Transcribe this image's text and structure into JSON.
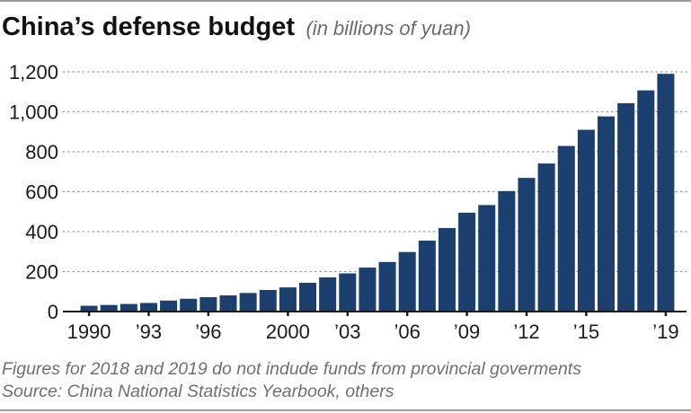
{
  "header": {
    "title": "China’s defense budget",
    "subtitle": "(in billions of yuan)"
  },
  "footer": {
    "note": "Figures for 2018 and 2019 do not indude funds from provincial goverments",
    "source": "Source: China National Statistics Yearbook, others"
  },
  "colors": {
    "bar": "#1b3f6e",
    "grid": "#9a9a9a",
    "axis": "#1a1a1a"
  },
  "chart_data": {
    "type": "bar",
    "title": "China’s defense budget",
    "subtitle": "(in billions of yuan)",
    "xlabel": "",
    "ylabel": "",
    "ylim": [
      0,
      1200
    ],
    "grid": true,
    "y_ticks": [
      0,
      200,
      400,
      600,
      800,
      1000,
      1200
    ],
    "y_tick_labels": [
      "0",
      "200",
      "400",
      "600",
      "800",
      "1,000",
      "1,200"
    ],
    "categories": [
      "1990",
      "1991",
      "1992",
      "1993",
      "1994",
      "1995",
      "1996",
      "1997",
      "1998",
      "1999",
      "2000",
      "2001",
      "2002",
      "2003",
      "2004",
      "2005",
      "2006",
      "2007",
      "2008",
      "2009",
      "2010",
      "2011",
      "2012",
      "2013",
      "2014",
      "2015",
      "2016",
      "2017",
      "2018",
      "2019"
    ],
    "values": [
      29,
      33,
      38,
      43,
      55,
      64,
      72,
      81,
      93,
      108,
      121,
      144,
      171,
      191,
      220,
      248,
      298,
      355,
      418,
      495,
      533,
      603,
      669,
      741,
      829,
      910,
      977,
      1043,
      1107,
      1190
    ],
    "x_tick_labels": [
      {
        "category": "1990",
        "label": "1990"
      },
      {
        "category": "1993",
        "label": "’93"
      },
      {
        "category": "1996",
        "label": "’96"
      },
      {
        "category": "2000",
        "label": "2000"
      },
      {
        "category": "2003",
        "label": "’03"
      },
      {
        "category": "2006",
        "label": "’06"
      },
      {
        "category": "2009",
        "label": "’09"
      },
      {
        "category": "2012",
        "label": "’12"
      },
      {
        "category": "2015",
        "label": "’15"
      },
      {
        "category": "2019",
        "label": "’19"
      }
    ],
    "x_tick_marks": [
      "1990",
      "1993",
      "1996",
      "2000",
      "2003",
      "2006",
      "2009",
      "2012",
      "2015",
      "2019"
    ]
  }
}
